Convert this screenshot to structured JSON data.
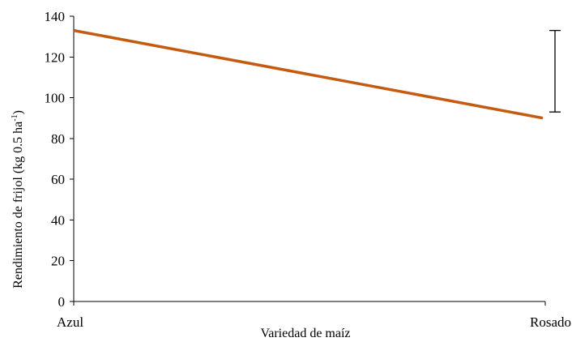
{
  "chart_data": {
    "type": "line",
    "categories": [
      "Azul",
      "Rosado"
    ],
    "series": [
      {
        "values": [
          133,
          90
        ],
        "color": "#C55A11"
      }
    ],
    "ylabel_prefix": "Rendimiento  de frijol  (kg 0.5 ha",
    "ylabel_sup": "-1",
    "ylabel_suffix": ")",
    "xlabel": "Variedad  de maíz",
    "ylim": [
      0,
      140
    ],
    "yticks": [
      0,
      20,
      40,
      60,
      80,
      100,
      120,
      140
    ],
    "error_bar": {
      "low": 93,
      "high": 133
    },
    "grid": false
  }
}
